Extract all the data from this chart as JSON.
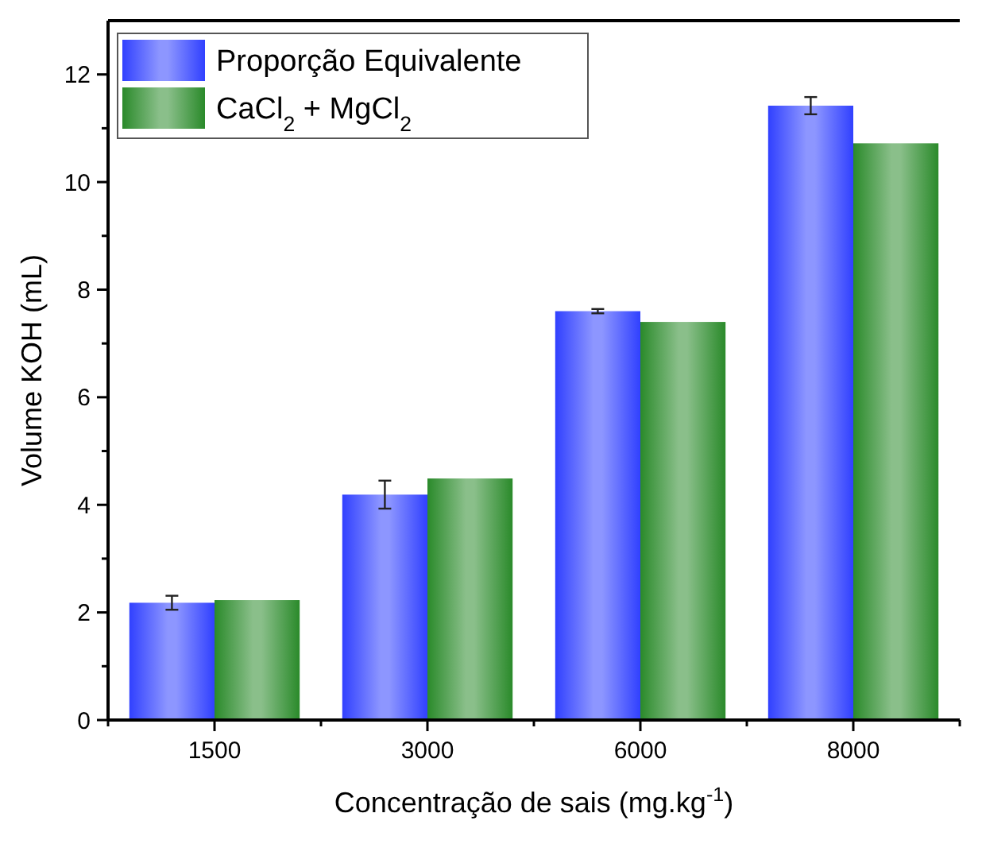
{
  "chart_data": {
    "type": "bar",
    "xlabel": "Concentração de sais (mg.kg$^{-1}$)",
    "ylabel": "Volume KOH (mL)",
    "categories": [
      "1500",
      "3000",
      "6000",
      "8000"
    ],
    "series": [
      {
        "name": "Proporção Equivalente",
        "color": "#3040ff",
        "values": [
          2.18,
          4.19,
          7.6,
          11.42
        ],
        "errors": [
          0.13,
          0.26,
          0.04,
          0.16
        ]
      },
      {
        "name": "CaCl$_{2}$ + MgCl$_{2}$",
        "color": "#2a8a2a",
        "values": [
          2.23,
          4.49,
          7.4,
          10.72
        ]
      }
    ],
    "ylim": [
      0,
      13
    ],
    "yticks": [
      0,
      {
        "value": 1,
        "label": null
      },
      2,
      {
        "value": 3,
        "label": null
      },
      4,
      {
        "value": 5,
        "label": null
      },
      6,
      {
        "value": 7,
        "label": null
      },
      8,
      {
        "value": 9,
        "label": null
      },
      10,
      {
        "value": 11,
        "label": null
      },
      12
    ],
    "grid": false,
    "legend": "top left"
  }
}
